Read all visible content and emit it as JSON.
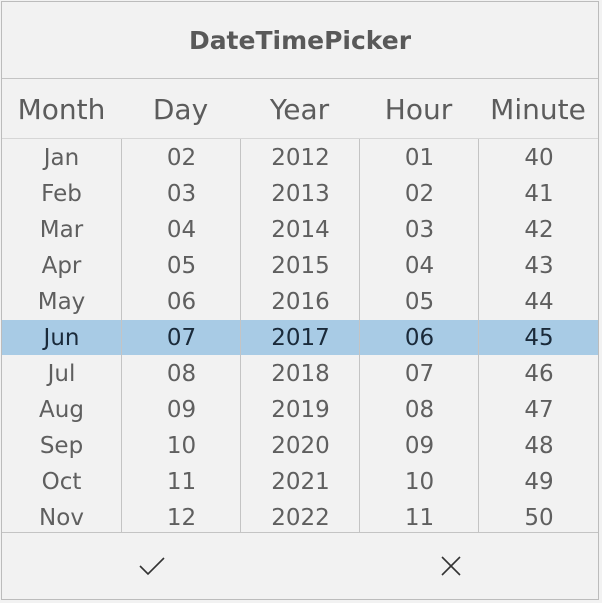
{
  "title": "DateTimePicker",
  "columns": [
    {
      "header": "Month",
      "items": [
        "Jan",
        "Feb",
        "Mar",
        "Apr",
        "May",
        "Jun",
        "Jul",
        "Aug",
        "Sep",
        "Oct",
        "Nov"
      ]
    },
    {
      "header": "Day",
      "items": [
        "02",
        "03",
        "04",
        "05",
        "06",
        "07",
        "08",
        "09",
        "10",
        "11",
        "12"
      ]
    },
    {
      "header": "Year",
      "items": [
        "2012",
        "2013",
        "2014",
        "2015",
        "2016",
        "2017",
        "2018",
        "2019",
        "2020",
        "2021",
        "2022"
      ]
    },
    {
      "header": "Hour",
      "items": [
        "01",
        "02",
        "03",
        "04",
        "05",
        "06",
        "07",
        "08",
        "09",
        "10",
        "11"
      ]
    },
    {
      "header": "Minute",
      "items": [
        "40",
        "41",
        "42",
        "43",
        "44",
        "45",
        "46",
        "47",
        "48",
        "49",
        "50"
      ]
    }
  ],
  "selected": {
    "Month": "Jun",
    "Day": "07",
    "Year": "2017",
    "Hour": "06",
    "Minute": "45"
  },
  "footer": {
    "confirm_icon": "check-icon",
    "cancel_icon": "close-icon"
  },
  "colors": {
    "selection": "#a8cbe5",
    "background": "#f2f2f2",
    "text": "#5f5f5f"
  }
}
